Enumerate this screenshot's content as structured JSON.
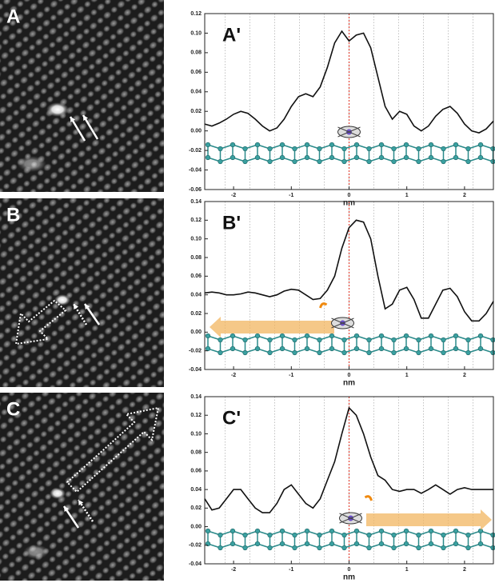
{
  "images": [
    {
      "label": "A"
    },
    {
      "label": "B"
    },
    {
      "label": "C"
    }
  ],
  "chart_data": [
    {
      "type": "line",
      "title": "A'",
      "xlabel": "nm",
      "color": "#111111",
      "xlim": [
        -2.5,
        2.5
      ],
      "xticks": [
        -2,
        -1,
        0,
        1,
        2
      ],
      "ylim": [
        -0.06,
        0.12
      ],
      "yticks": [
        -0.06,
        -0.04,
        -0.02,
        {
          "value": 0,
          "label": "0.00"
        },
        0.02,
        0.04,
        0.06,
        0.08,
        {
          "value": 0.1,
          "label": "0.10"
        },
        0.12
      ],
      "x": [
        -2.5,
        -2.375,
        -2.25,
        -2.125,
        -2,
        -1.875,
        -1.75,
        -1.625,
        -1.5,
        -1.375,
        -1.25,
        -1.125,
        -1,
        -0.875,
        -0.75,
        -0.625,
        -0.5,
        -0.375,
        -0.25,
        -0.125,
        0,
        0.125,
        0.25,
        0.375,
        0.5,
        0.625,
        0.75,
        0.875,
        1,
        1.125,
        1.25,
        1.375,
        1.5,
        1.625,
        1.75,
        1.875,
        2,
        2.125,
        2.25,
        2.375,
        2.5
      ],
      "values": [
        0.007,
        0.005,
        0.008,
        0.012,
        0.017,
        0.02,
        0.018,
        0.012,
        0.005,
        0.0,
        0.003,
        0.012,
        0.025,
        0.035,
        0.038,
        0.035,
        0.045,
        0.065,
        0.09,
        0.102,
        0.092,
        0.098,
        0.1,
        0.085,
        0.055,
        0.025,
        0.012,
        0.02,
        0.017,
        0.005,
        0.0,
        0.005,
        0.015,
        0.022,
        0.025,
        0.018,
        0.007,
        0.0,
        -0.002,
        0.002,
        0.01
      ]
    },
    {
      "type": "line",
      "title": "B'",
      "xlabel": "nm",
      "color": "#111111",
      "xlim": [
        -2.5,
        2.5
      ],
      "xticks": [
        -2,
        -1,
        0,
        1,
        2
      ],
      "ylim": [
        -0.04,
        0.14
      ],
      "yticks": [
        -0.04,
        -0.02,
        {
          "value": 0,
          "label": "0.00"
        },
        0.02,
        0.04,
        0.06,
        0.08,
        {
          "value": 0.1,
          "label": "0.10"
        },
        0.12,
        0.14
      ],
      "x": [
        -2.5,
        -2.375,
        -2.25,
        -2.125,
        -2,
        -1.875,
        -1.75,
        -1.625,
        -1.5,
        -1.375,
        -1.25,
        -1.125,
        -1,
        -0.875,
        -0.75,
        -0.625,
        -0.5,
        -0.375,
        -0.25,
        -0.125,
        0,
        0.125,
        0.25,
        0.375,
        0.5,
        0.625,
        0.75,
        0.875,
        1,
        1.125,
        1.25,
        1.375,
        1.5,
        1.625,
        1.75,
        1.875,
        2,
        2.125,
        2.25,
        2.375,
        2.5
      ],
      "values": [
        0.042,
        0.043,
        0.042,
        0.04,
        0.04,
        0.041,
        0.043,
        0.042,
        0.04,
        0.038,
        0.04,
        0.044,
        0.046,
        0.045,
        0.04,
        0.035,
        0.036,
        0.045,
        0.06,
        0.09,
        0.112,
        0.12,
        0.118,
        0.1,
        0.06,
        0.025,
        0.03,
        0.045,
        0.048,
        0.035,
        0.015,
        0.015,
        0.03,
        0.045,
        0.047,
        0.038,
        0.022,
        0.012,
        0.012,
        0.02,
        0.033
      ]
    },
    {
      "type": "line",
      "title": "C'",
      "xlabel": "nm",
      "color": "#111111",
      "xlim": [
        -2.5,
        2.5
      ],
      "xticks": [
        -2,
        -1,
        0,
        1,
        2
      ],
      "ylim": [
        -0.04,
        0.14
      ],
      "yticks": [
        -0.04,
        -0.02,
        {
          "value": 0,
          "label": "0.00"
        },
        0.02,
        0.04,
        0.06,
        0.08,
        {
          "value": 0.1,
          "label": "0.10"
        },
        0.12,
        0.14
      ],
      "x": [
        -2.5,
        -2.375,
        -2.25,
        -2.125,
        -2,
        -1.875,
        -1.75,
        -1.625,
        -1.5,
        -1.375,
        -1.25,
        -1.125,
        -1,
        -0.875,
        -0.75,
        -0.625,
        -0.5,
        -0.375,
        -0.25,
        -0.125,
        0,
        0.125,
        0.25,
        0.375,
        0.5,
        0.625,
        0.75,
        0.875,
        1,
        1.125,
        1.25,
        1.375,
        1.5,
        1.625,
        1.75,
        1.875,
        2,
        2.125,
        2.25,
        2.375,
        2.5
      ],
      "values": [
        0.03,
        0.018,
        0.02,
        0.03,
        0.04,
        0.04,
        0.03,
        0.02,
        0.015,
        0.015,
        0.025,
        0.04,
        0.045,
        0.035,
        0.025,
        0.02,
        0.03,
        0.05,
        0.07,
        0.1,
        0.128,
        0.12,
        0.1,
        0.075,
        0.055,
        0.05,
        0.04,
        0.038,
        0.04,
        0.04,
        0.036,
        0.04,
        0.045,
        0.04,
        0.035,
        0.04,
        0.042,
        0.04,
        0.04,
        0.04,
        0.04
      ]
    }
  ]
}
